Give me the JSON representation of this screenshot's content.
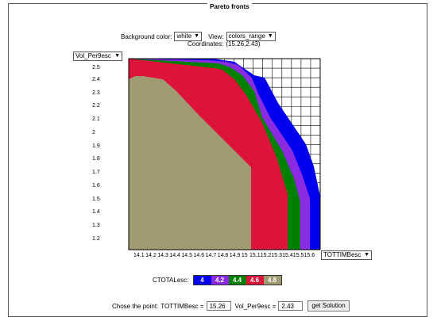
{
  "panel": {
    "title": "Pareto fronts"
  },
  "controls": {
    "bg_label": "Background color:",
    "bg_value": "white",
    "view_label": "View:",
    "view_value": "colors_range",
    "coords_label": "Coordinates:",
    "coords_value": "(15.26,2.43)"
  },
  "axes": {
    "y_select": "Vol_Per9esc",
    "x_select": "TOTTIMBesc",
    "y_ticks": [
      "2.5",
      "2.4",
      "2.3",
      "2.2",
      "2.1",
      "2",
      "1.9",
      "1.8",
      "1.7",
      "1.6",
      "1.5",
      "1.4",
      "1.3",
      "1.2"
    ],
    "x_ticks": [
      "14.1",
      "14.2",
      "14.3",
      "14.4",
      "14.5",
      "14.6",
      "14.7",
      "14.8",
      "14.9",
      "15",
      "15.1",
      "15.2",
      "15.3",
      "15.4",
      "15.5",
      "15.6"
    ]
  },
  "chart_data": {
    "type": "area",
    "xlabel": "TOTTIMBesc",
    "ylabel": "Vol_Per9esc",
    "legend_label": "CTOTALesc:",
    "grid": true,
    "series": [
      {
        "name": "4",
        "color": "#0000ee"
      },
      {
        "name": "4.2",
        "color": "#8a2be2"
      },
      {
        "name": "4.4",
        "color": "#008000"
      },
      {
        "name": "4.6",
        "color": "#dc143c"
      },
      {
        "name": "4.8",
        "color": "#a09a70"
      }
    ]
  },
  "solution": {
    "label": "Chose the point:",
    "x_label": "TOTTIMBesc =",
    "x_value": "15.26",
    "y_label": "Vol_Per9esc =",
    "y_value": "2.43",
    "button": "get Solution"
  }
}
